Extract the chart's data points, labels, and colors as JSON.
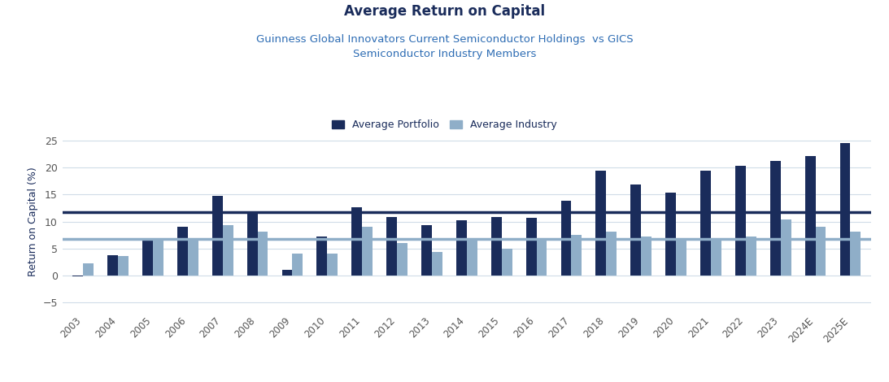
{
  "title": "Average Return on Capital",
  "subtitle": "Guinness Global Innovators Current Semiconductor Holdings  vs GICS\nSemiconductor Industry Members",
  "title_color": "#1a2c5b",
  "subtitle_color": "#2e6db4",
  "ylabel": "Return on Capital (%)",
  "years": [
    "2003",
    "2004",
    "2005",
    "2006",
    "2007",
    "2008",
    "2009",
    "2010",
    "2011",
    "2012",
    "2013",
    "2014",
    "2015",
    "2016",
    "2017",
    "2018",
    "2019",
    "2020",
    "2021",
    "2022",
    "2023",
    "2024E",
    "2025E"
  ],
  "portfolio": [
    -0.2,
    3.8,
    6.8,
    9.0,
    14.8,
    11.5,
    1.0,
    7.3,
    12.7,
    10.8,
    9.4,
    10.3,
    10.8,
    10.7,
    13.8,
    19.5,
    16.8,
    15.3,
    19.5,
    20.4,
    21.2,
    22.2,
    24.5
  ],
  "industry": [
    2.2,
    3.6,
    6.7,
    6.5,
    9.3,
    8.2,
    4.0,
    4.0,
    9.0,
    6.0,
    4.4,
    6.5,
    4.9,
    6.5,
    7.5,
    8.2,
    7.2,
    6.8,
    6.8,
    7.2,
    10.4,
    9.0,
    8.2
  ],
  "portfolio_color": "#1a2c5b",
  "industry_color": "#8faec8",
  "hline_portfolio": 11.8,
  "hline_industry": 6.7,
  "hline_portfolio_color": "#1a2c5b",
  "hline_industry_color": "#8faec8",
  "ylim": [
    -7,
    27
  ],
  "yticks": [
    -5,
    0,
    5,
    10,
    15,
    20,
    25
  ],
  "legend_portfolio": "Average Portfolio",
  "legend_industry": "Average Industry",
  "background_color": "#ffffff",
  "grid_color": "#d0dce8"
}
